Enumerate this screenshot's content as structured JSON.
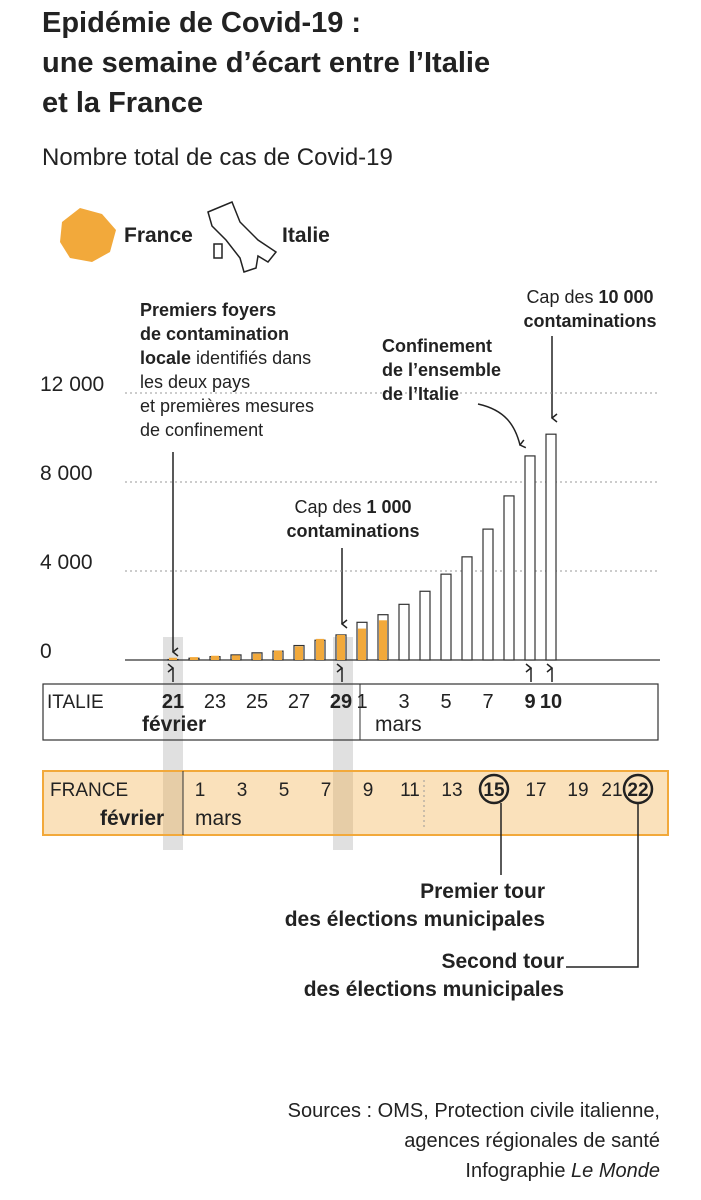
{
  "header": {
    "title": [
      "Epidémie  de Covid-19 :",
      "une semaine d’écart entre l’Italie",
      "et la France"
    ]
  },
  "chart_data": {
    "type": "bar",
    "subtitle": "Nombre total de cas de Covid-19",
    "categories": [
      "21",
      null,
      "23",
      null,
      "25",
      null,
      "27",
      null,
      "29",
      "1",
      null,
      "3",
      null,
      "5",
      null,
      "7",
      null,
      "9",
      "10"
    ],
    "bold_categories": [
      "21",
      "29",
      "9",
      "10"
    ],
    "italy_axis_label": "ITALIE",
    "italy_months": [
      "février",
      "mars"
    ],
    "france_categories": [
      null,
      "1",
      null,
      "3",
      null,
      "5",
      null,
      "7",
      null,
      "9",
      null,
      "11",
      null,
      "13",
      null,
      "15",
      null,
      "17",
      null,
      "19",
      null,
      "21",
      "22"
    ],
    "circled": [
      "15",
      "22"
    ],
    "france_axis_label": "FRANCE",
    "france_months": [
      "février",
      "mars"
    ],
    "ylim": [
      0,
      12000
    ],
    "yticks": [
      0,
      {
        "value": 4000,
        "label": "4 000"
      },
      {
        "value": 8000,
        "label": "8 000"
      },
      {
        "value": 12000,
        "label": "12 000"
      }
    ],
    "grid": true,
    "series": [
      {
        "name": "Italie",
        "color": "#ffffff",
        "values": [
          20,
          79,
          150,
          229,
          322,
          400,
          650,
          888,
          1128,
          1694,
          2036,
          2502,
          3089,
          3858,
          4636,
          5883,
          7375,
          9172,
          10149
        ]
      },
      {
        "name": "France",
        "color": "#f2a93b",
        "values": [
          100,
          130,
          191,
          212,
          285,
          423,
          613,
          949,
          1126,
          1412,
          1784,
          null,
          null,
          null,
          null,
          null,
          null,
          null,
          null
        ]
      }
    ]
  },
  "annotations": [
    {
      "lines": [
        [
          {
            "text": "Premiers foyers",
            "bold": true
          }
        ],
        [
          {
            "text": "de contamination",
            "bold": true
          }
        ],
        [
          {
            "text": "locale",
            "bold": true
          },
          {
            "text": " identifiés dans",
            "bold": false
          }
        ],
        [
          {
            "text": "les deux pays",
            "bold": false
          }
        ],
        [
          {
            "text": "et premières mesures",
            "bold": false
          }
        ],
        [
          {
            "text": "de confinement",
            "bold": false
          }
        ]
      ]
    },
    {
      "lines": [
        [
          {
            "text": "Cap des ",
            "bold": false
          },
          {
            "text": "1 000",
            "bold": true
          }
        ],
        [
          {
            "text": "contaminations",
            "bold": true
          }
        ]
      ]
    },
    {
      "lines": [
        [
          {
            "text": "Confinement",
            "bold": true
          }
        ],
        [
          {
            "text": "de l’ensemble",
            "bold": true
          }
        ],
        [
          {
            "text": "de l’Italie",
            "bold": true
          }
        ]
      ]
    },
    {
      "lines": [
        [
          {
            "text": "Cap des ",
            "bold": false
          },
          {
            "text": "10 000",
            "bold": true
          }
        ],
        [
          {
            "text": "contaminations",
            "bold": true
          }
        ]
      ]
    },
    {
      "lines": [
        [
          {
            "text": "Premier tour",
            "bold": true
          }
        ],
        [
          {
            "text": "des élections municipales",
            "bold": true
          }
        ]
      ]
    },
    {
      "lines": [
        [
          {
            "text": "Second tour",
            "bold": true
          }
        ],
        [
          {
            "text": "des élections municipales",
            "bold": true
          }
        ]
      ]
    }
  ],
  "sources": [
    [
      {
        "text": "Sources : OMS, Protection civile italienne,",
        "italic": false
      }
    ],
    [
      {
        "text": "agences régionales de santé",
        "italic": false
      }
    ],
    [
      {
        "text": "Infographie ",
        "italic": false
      },
      {
        "text": "Le Monde",
        "italic": true
      }
    ]
  ]
}
